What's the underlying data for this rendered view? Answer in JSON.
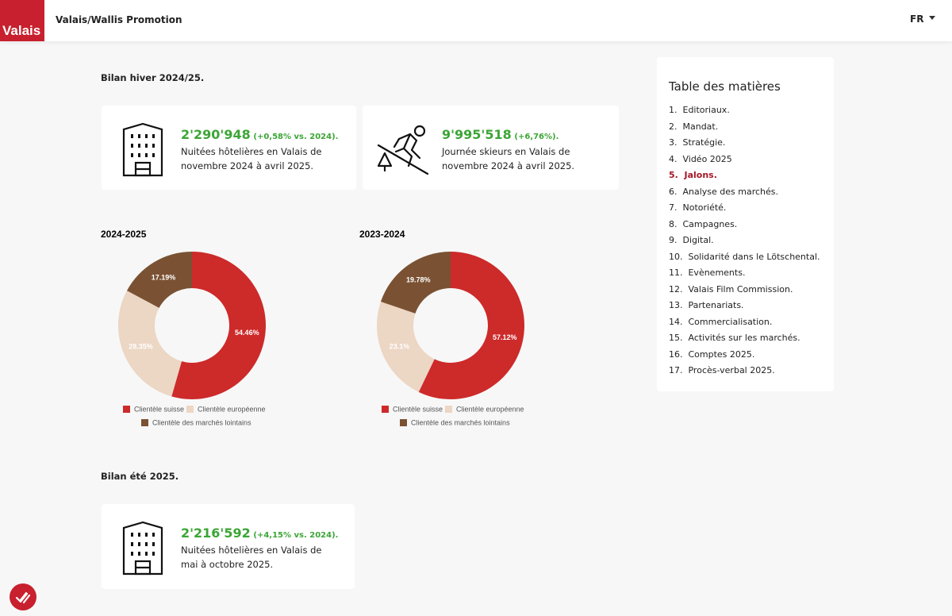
{
  "header": {
    "logo": "Valais",
    "title": "Valais/Wallis Promotion",
    "language": "FR"
  },
  "winter": {
    "title": "Bilan hiver 2024/25.",
    "stats": [
      {
        "value": "2'290'948",
        "change": "(+0,58% vs. 2024).",
        "description": "Nuitées hôtelières en Valais de novembre 2024 à avril 2025."
      },
      {
        "value": "9'995'518",
        "change": "(+6,76%).",
        "description": "Journée skieurs en Valais de novembre 2024 à avril 2025."
      }
    ]
  },
  "chart_data": [
    {
      "type": "pie",
      "title": "2024-2025",
      "donut": true,
      "categories": [
        "Clientèle suisse",
        "Clientèle européenne",
        "Clientèle des marchés lointains"
      ],
      "values": [
        54.46,
        28.35,
        17.19
      ],
      "value_labels": [
        "54.46%",
        "28.35%",
        "17.19%"
      ],
      "colors": [
        "#cd2a2a",
        "#ecd6c4",
        "#7a5233"
      ]
    },
    {
      "type": "pie",
      "title": "2023-2024",
      "donut": true,
      "categories": [
        "Clientèle suisse",
        "Clientèle européenne",
        "Clientèle des marchés lointains"
      ],
      "values": [
        57.12,
        23.1,
        19.78
      ],
      "value_labels": [
        "57.12%",
        "23.1%",
        "19.78%"
      ],
      "colors": [
        "#cd2a2a",
        "#ecd6c4",
        "#7a5233"
      ]
    }
  ],
  "summer": {
    "title": "Bilan été 2025.",
    "stats": [
      {
        "value": "2'216'592",
        "change": "(+4,15% vs. 2024).",
        "description": "Nuitées hôtelières en Valais de mai à octobre 2025."
      }
    ]
  },
  "toc": {
    "title": "Table des matières",
    "active": 4,
    "items": [
      "1.  Editoriaux.",
      "2.  Mandat.",
      "3.  Stratégie.",
      "4.  Vidéo 2025",
      "5.  Jalons.",
      "6.  Analyse des marchés.",
      "7.  Notoriété.",
      "8.  Campagnes.",
      "9.  Digital.",
      "10.  Solidarité dans le Lötschental.",
      "11.  Evènements.",
      "12.  Valais Film Commission.",
      "13.  Partenariats.",
      "14.  Commercialisation.",
      "15.  Activités sur les marchés.",
      "16.  Comptes 2025.",
      "17.  Procès-verbal 2025."
    ]
  }
}
